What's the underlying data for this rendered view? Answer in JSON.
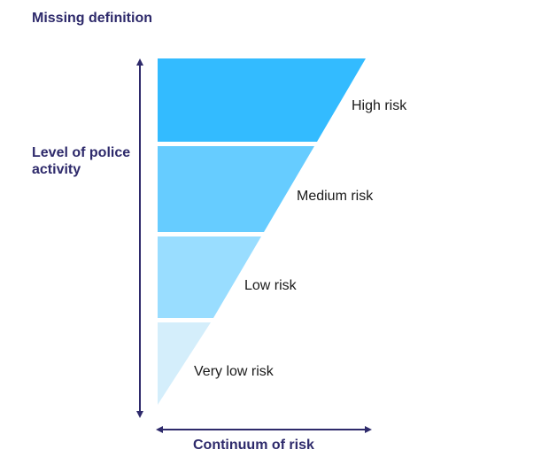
{
  "title": "Missing definition",
  "y_axis_label": "Level of police activity",
  "x_axis_label": "Continuum of risk",
  "levels": [
    {
      "label": "High risk",
      "color": "#33bbff"
    },
    {
      "label": "Medium risk",
      "color": "#66ccff"
    },
    {
      "label": "Low risk",
      "color": "#99ddff"
    },
    {
      "label": "Very low risk",
      "color": "#d4eefb"
    }
  ],
  "axis_color": "#2e2a6b"
}
